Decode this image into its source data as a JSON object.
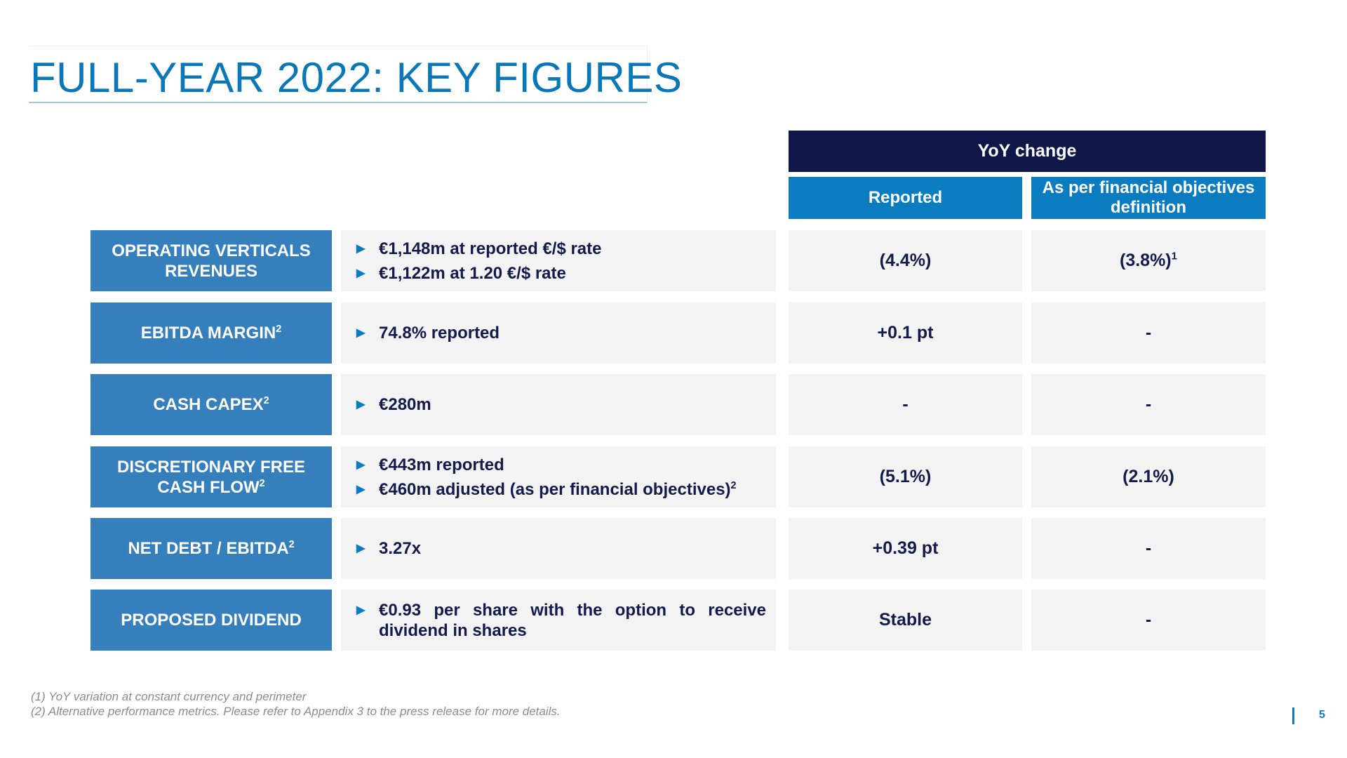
{
  "title": "FULL-YEAR 2022: KEY FIGURES",
  "header": {
    "yoy": "YoY change",
    "reported": "Reported",
    "objectives": "As per financial objectives definition"
  },
  "rows": [
    {
      "label": "OPERATING VERTICALS REVENUES",
      "label_sup": "",
      "bullets": [
        {
          "text": "€1,148m at reported €/$ rate",
          "sup": ""
        },
        {
          "text": "€1,122m at 1.20 €/$ rate",
          "sup": ""
        }
      ],
      "reported": "(4.4%)",
      "reported_sup": "",
      "objectives": "(3.8%)",
      "objectives_sup": "1"
    },
    {
      "label": "EBITDA MARGIN",
      "label_sup": "2",
      "bullets": [
        {
          "text": "74.8% reported",
          "sup": ""
        }
      ],
      "reported": "+0.1 pt",
      "reported_sup": "",
      "objectives": "-",
      "objectives_sup": ""
    },
    {
      "label": "CASH CAPEX",
      "label_sup": "2",
      "bullets": [
        {
          "text": "€280m",
          "sup": ""
        }
      ],
      "reported": "-",
      "reported_sup": "",
      "objectives": "-",
      "objectives_sup": ""
    },
    {
      "label": "DISCRETIONARY FREE CASH FLOW",
      "label_sup": "2",
      "bullets": [
        {
          "text": "€443m reported",
          "sup": ""
        },
        {
          "text": "€460m adjusted (as per financial objectives)",
          "sup": "2"
        }
      ],
      "reported": "(5.1%)",
      "reported_sup": "",
      "objectives": "(2.1%)",
      "objectives_sup": ""
    },
    {
      "label": "NET DEBT / EBITDA",
      "label_sup": "2",
      "bullets": [
        {
          "text": "3.27x",
          "sup": ""
        }
      ],
      "reported": "+0.39 pt",
      "reported_sup": "",
      "objectives": "-",
      "objectives_sup": ""
    },
    {
      "label": "PROPOSED DIVIDEND",
      "label_sup": "",
      "bullets": [
        {
          "text": "€0.93 per share with the option to receive dividend in shares",
          "sup": ""
        }
      ],
      "reported": "Stable",
      "reported_sup": "",
      "objectives": "-",
      "objectives_sup": ""
    }
  ],
  "footnotes": [
    "(1) YoY variation at constant currency and perimeter",
    "(2) Alternative performance metrics. Please refer to Appendix 3 to the press release for more details."
  ],
  "page_number": "5",
  "bullet_icon": "triangle-right-icon",
  "colors": {
    "title": "#0a78b8",
    "header_dark": "#0f1749",
    "header_blue": "#0b7cbf",
    "label_blue": "#367fbd",
    "cell_grey": "#f3f3f3",
    "text_navy": "#131b4d"
  }
}
